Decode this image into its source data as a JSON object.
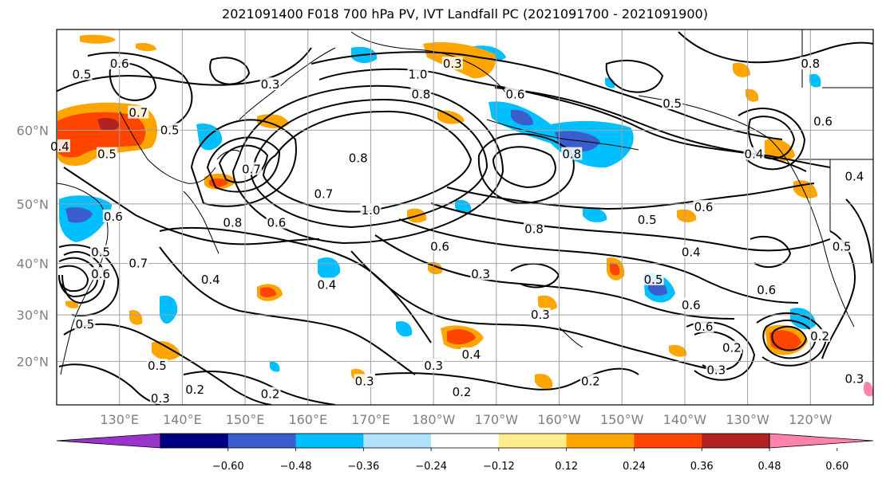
{
  "title": "2021091400 F018 700 hPa PV, IVT Landfall PC (2021091700 - 2021091900)",
  "map": {
    "lat_ticks": [
      {
        "label": "60°N",
        "lat": 60
      },
      {
        "label": "50°N",
        "lat": 50
      },
      {
        "label": "40°N",
        "lat": 40
      },
      {
        "label": "30°N",
        "lat": 30
      },
      {
        "label": "20°N",
        "lat": 20
      }
    ],
    "lon_ticks": [
      {
        "label": "130°E",
        "lon": 130
      },
      {
        "label": "140°E",
        "lon": 140
      },
      {
        "label": "150°E",
        "lon": 150
      },
      {
        "label": "160°E",
        "lon": 160
      },
      {
        "label": "170°E",
        "lon": 170
      },
      {
        "label": "180°W",
        "lon": 180
      },
      {
        "label": "170°W",
        "lon": 190
      },
      {
        "label": "160°W",
        "lon": 200
      },
      {
        "label": "150°W",
        "lon": 210
      },
      {
        "label": "140°W",
        "lon": 220
      },
      {
        "label": "130°W",
        "lon": 230
      },
      {
        "label": "120°W",
        "lon": 240
      }
    ],
    "lon_range": [
      120,
      250
    ],
    "lat_range": [
      10,
      70
    ],
    "gridlines": true,
    "colors": {
      "grid": "#a0a0a0",
      "coast": "#000000",
      "contour": "#000000"
    }
  },
  "colorbar": {
    "bins": [
      {
        "color": "#9933cc"
      },
      {
        "color": "#000080"
      },
      {
        "color": "#3a5fcd"
      },
      {
        "color": "#00bfff"
      },
      {
        "color": "#b0e2ff"
      },
      {
        "color": "#ffffff"
      },
      {
        "color": "#ffec8b"
      },
      {
        "color": "#ffa500"
      },
      {
        "color": "#ff4500"
      },
      {
        "color": "#b22222"
      },
      {
        "color": "#ff82ab"
      }
    ],
    "ticks": [
      {
        "label": "−0.60",
        "value": -0.6
      },
      {
        "label": "−0.48",
        "value": -0.48
      },
      {
        "label": "−0.36",
        "value": -0.36
      },
      {
        "label": "−0.24",
        "value": -0.24
      },
      {
        "label": "−0.12",
        "value": -0.12
      },
      {
        "label": "0.12",
        "value": 0.12
      },
      {
        "label": "0.24",
        "value": 0.24
      },
      {
        "label": "0.36",
        "value": 0.36
      },
      {
        "label": "0.48",
        "value": 0.48
      },
      {
        "label": "0.60",
        "value": 0.6
      }
    ]
  },
  "contour_labels": [
    {
      "text": "1.0",
      "lon": 177.5,
      "lat": 66
    },
    {
      "text": "0.8",
      "lon": 178,
      "lat": 64
    },
    {
      "text": "0.6",
      "lon": 193,
      "lat": 64
    },
    {
      "text": "0.5",
      "lon": 218,
      "lat": 63
    },
    {
      "text": "0.8",
      "lon": 240,
      "lat": 67
    },
    {
      "text": "0.6",
      "lon": 242,
      "lat": 61
    },
    {
      "text": "0.4",
      "lon": 231,
      "lat": 57
    },
    {
      "text": "0.4",
      "lon": 247,
      "lat": 54
    },
    {
      "text": "0.6",
      "lon": 223,
      "lat": 49.5
    },
    {
      "text": "0.5",
      "lon": 214,
      "lat": 47.5
    },
    {
      "text": "0.8",
      "lon": 196,
      "lat": 46
    },
    {
      "text": "0.8",
      "lon": 202,
      "lat": 57
    },
    {
      "text": "1.0",
      "lon": 170,
      "lat": 49
    },
    {
      "text": "0.7",
      "lon": 162.5,
      "lat": 51.5
    },
    {
      "text": "0.8",
      "lon": 168,
      "lat": 56.5
    },
    {
      "text": "0.6",
      "lon": 155,
      "lat": 47
    },
    {
      "text": "0.8",
      "lon": 148,
      "lat": 47
    },
    {
      "text": "0.6",
      "lon": 181,
      "lat": 43
    },
    {
      "text": "0.3",
      "lon": 183,
      "lat": 67
    },
    {
      "text": "0.3",
      "lon": 154,
      "lat": 65
    },
    {
      "text": "0.7",
      "lon": 133,
      "lat": 62
    },
    {
      "text": "0.5",
      "lon": 138,
      "lat": 60
    },
    {
      "text": "0.6",
      "lon": 130,
      "lat": 67
    },
    {
      "text": "0.5",
      "lon": 124,
      "lat": 66
    },
    {
      "text": "0.4",
      "lon": 120.5,
      "lat": 58
    },
    {
      "text": "0.5",
      "lon": 128,
      "lat": 57
    },
    {
      "text": "0.7",
      "lon": 151,
      "lat": 55
    },
    {
      "text": "0.6",
      "lon": 129,
      "lat": 48
    },
    {
      "text": "0.7",
      "lon": 133,
      "lat": 40
    },
    {
      "text": "0.6",
      "lon": 127,
      "lat": 38
    },
    {
      "text": "0.5",
      "lon": 127,
      "lat": 42
    },
    {
      "text": "0.4",
      "lon": 144.5,
      "lat": 37
    },
    {
      "text": "0.4",
      "lon": 163,
      "lat": 36
    },
    {
      "text": "0.3",
      "lon": 187.5,
      "lat": 38
    },
    {
      "text": "0.4",
      "lon": 221,
      "lat": 42
    },
    {
      "text": "0.5",
      "lon": 215,
      "lat": 37
    },
    {
      "text": "0.6",
      "lon": 221,
      "lat": 32
    },
    {
      "text": "0.6",
      "lon": 223,
      "lat": 27.5
    },
    {
      "text": "0.6",
      "lon": 233,
      "lat": 35
    },
    {
      "text": "0.5",
      "lon": 245,
      "lat": 43
    },
    {
      "text": "0.3",
      "lon": 197,
      "lat": 30
    },
    {
      "text": "0.4",
      "lon": 186,
      "lat": 21.5
    },
    {
      "text": "0.3",
      "lon": 180,
      "lat": 19
    },
    {
      "text": "0.2",
      "lon": 205,
      "lat": 15.5
    },
    {
      "text": "0.2",
      "lon": 184.5,
      "lat": 13
    },
    {
      "text": "0.3",
      "lon": 169,
      "lat": 15.5
    },
    {
      "text": "0.2",
      "lon": 154,
      "lat": 12.5
    },
    {
      "text": "0.2",
      "lon": 142,
      "lat": 13.5
    },
    {
      "text": "0.3",
      "lon": 136.5,
      "lat": 11.5
    },
    {
      "text": "0.5",
      "lon": 136,
      "lat": 19
    },
    {
      "text": "0.5",
      "lon": 124.5,
      "lat": 28
    },
    {
      "text": "0.2",
      "lon": 227.5,
      "lat": 23
    },
    {
      "text": "0.3",
      "lon": 225,
      "lat": 18
    },
    {
      "text": "0.2",
      "lon": 241.5,
      "lat": 25.5
    },
    {
      "text": "0.3",
      "lon": 247,
      "lat": 16
    }
  ]
}
